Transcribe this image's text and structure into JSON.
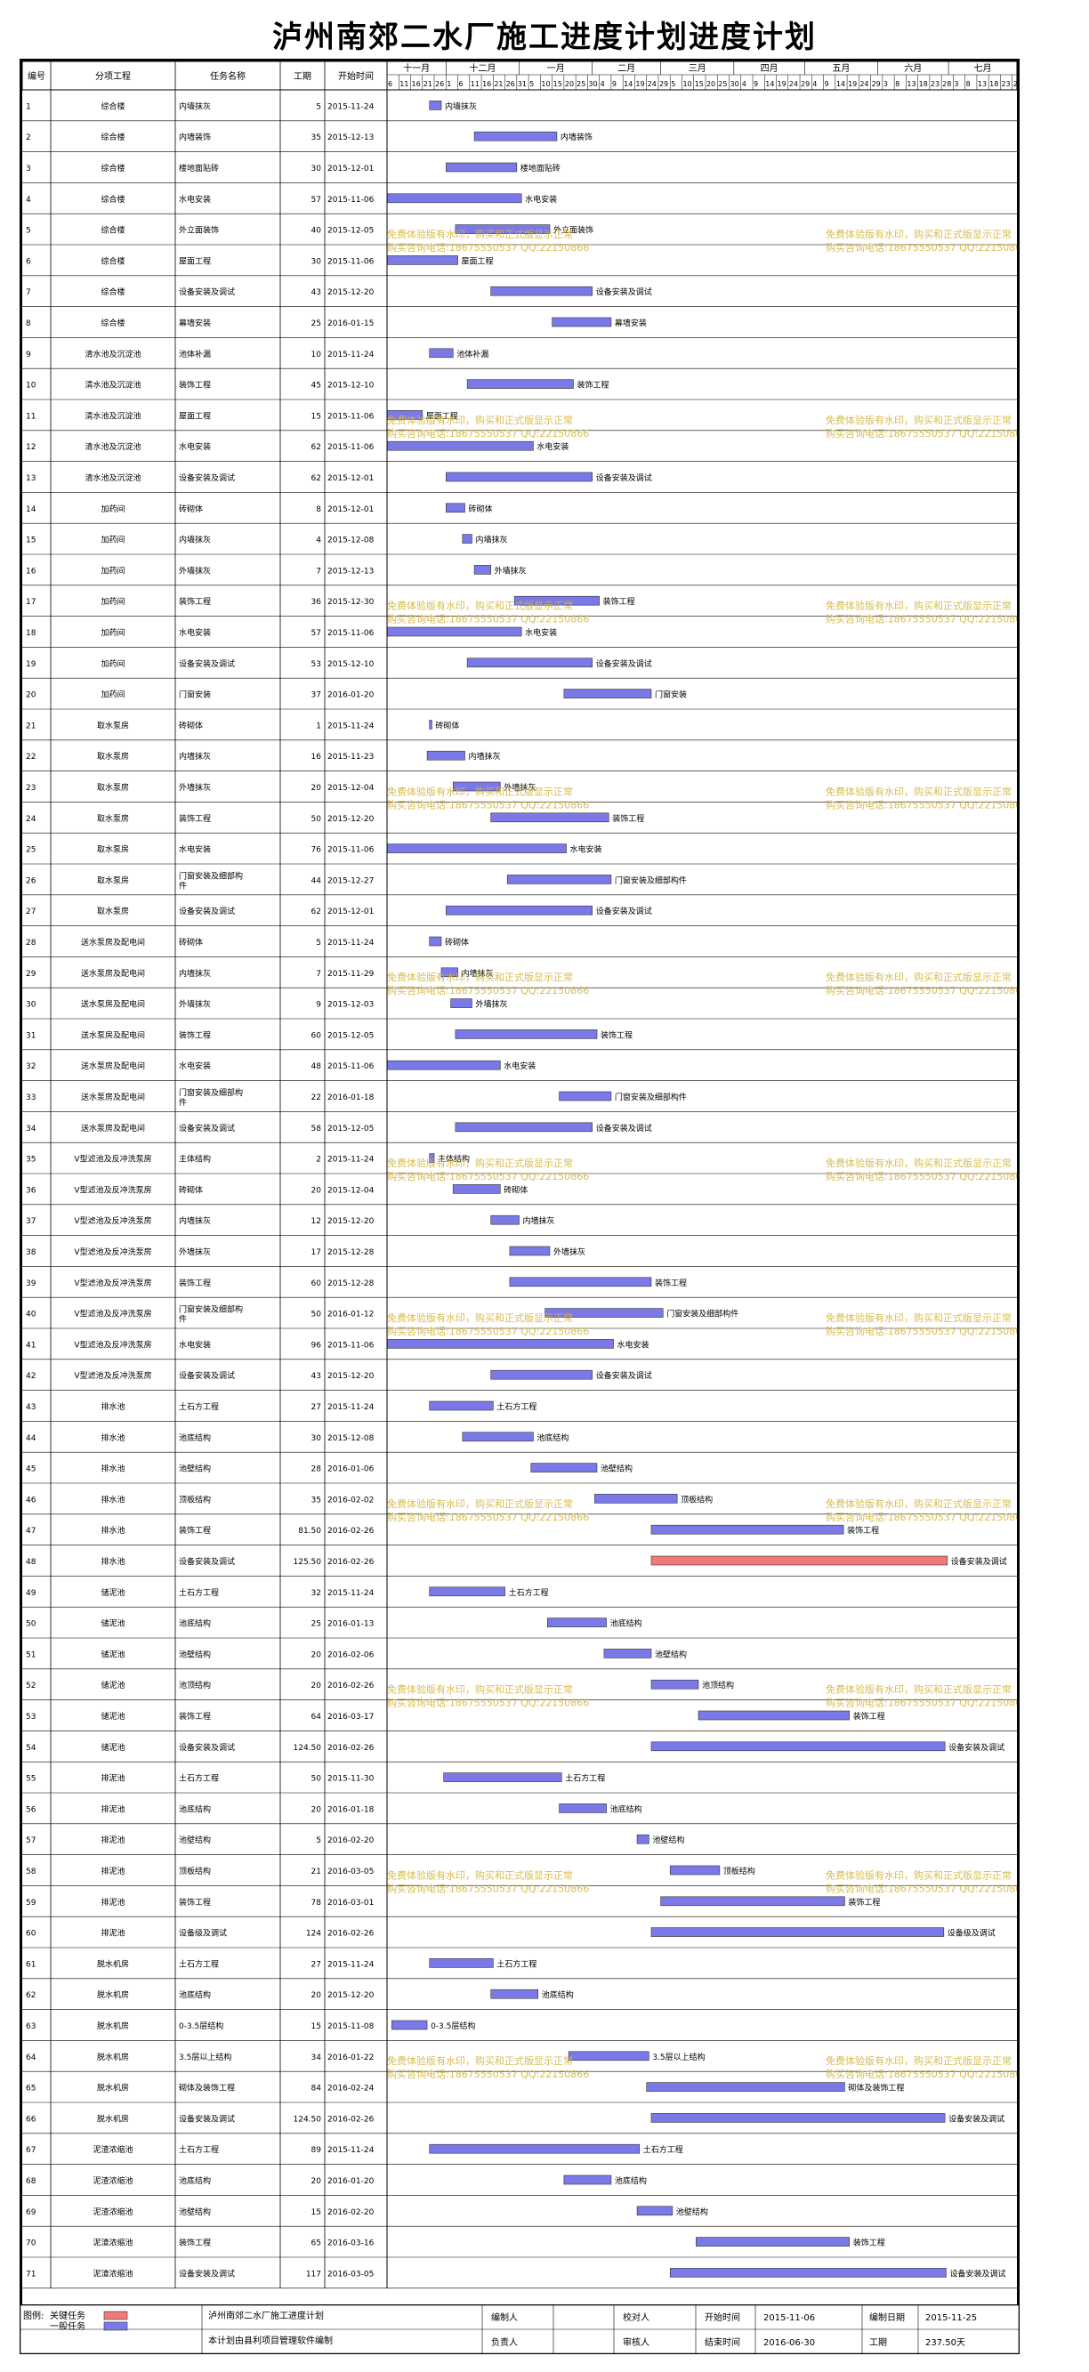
{
  "title": "泸州南郊二水厂施工进度计划进度计划",
  "columns": [
    "编号",
    "分项工程",
    "任务名称",
    "工期",
    "开始时间"
  ],
  "months": [
    "十一月",
    "十二月",
    "一月",
    "二月",
    "三月",
    "四月",
    "五月",
    "六月",
    "七月"
  ],
  "day_ticks": [
    "6",
    "11",
    "16",
    "21",
    "26",
    "1",
    "6",
    "11",
    "16",
    "21",
    "26",
    "31",
    "5",
    "10",
    "15",
    "20",
    "25",
    "30",
    "4",
    "9",
    "14",
    "19",
    "24",
    "29",
    "5",
    "10",
    "15",
    "20",
    "25",
    "30",
    "4",
    "9",
    "14",
    "19",
    "24",
    "29",
    "4",
    "9",
    "14",
    "19",
    "24",
    "29",
    "3",
    "8",
    "13",
    "18",
    "23",
    "28",
    "3",
    "8",
    "13",
    "18",
    "23",
    "28"
  ],
  "colors": {
    "normal": "#7b79e8",
    "critical": "#f07a7a",
    "border": "#000000",
    "grid": "#bfbfbf",
    "watermark": "#d4b53c"
  },
  "watermark": {
    "line1": "免费体验版有水印，购买和正式版显示正常",
    "line2": "购买咨询电话:18675550537 QQ:22150866"
  },
  "chart_data": {
    "type": "gantt",
    "x_start": "2015-11-06",
    "x_end": "2016-07-30",
    "tasks": [
      {
        "id": "1",
        "group": "综合楼",
        "name": "内墙抹灰",
        "duration": "5",
        "start": "2015-11-24"
      },
      {
        "id": "2",
        "group": "综合楼",
        "name": "内墙装饰",
        "duration": "35",
        "start": "2015-12-13"
      },
      {
        "id": "3",
        "group": "综合楼",
        "name": "楼地面贴砖",
        "duration": "30",
        "start": "2015-12-01"
      },
      {
        "id": "4",
        "group": "综合楼",
        "name": "水电安装",
        "duration": "57",
        "start": "2015-11-06"
      },
      {
        "id": "5",
        "group": "综合楼",
        "name": "外立面装饰",
        "duration": "40",
        "start": "2015-12-05"
      },
      {
        "id": "6",
        "group": "综合楼",
        "name": "屋面工程",
        "duration": "30",
        "start": "2015-11-06"
      },
      {
        "id": "7",
        "group": "综合楼",
        "name": "设备安装及调试",
        "duration": "43",
        "start": "2015-12-20"
      },
      {
        "id": "8",
        "group": "综合楼",
        "name": "幕墙安装",
        "duration": "25",
        "start": "2016-01-15"
      },
      {
        "id": "9",
        "group": "清水池及沉淀池",
        "name": "池体补漏",
        "duration": "10",
        "start": "2015-11-24"
      },
      {
        "id": "10",
        "group": "清水池及沉淀池",
        "name": "装饰工程",
        "duration": "45",
        "start": "2015-12-10"
      },
      {
        "id": "11",
        "group": "清水池及沉淀池",
        "name": "屋面工程",
        "duration": "15",
        "start": "2015-11-06"
      },
      {
        "id": "12",
        "group": "清水池及沉淀池",
        "name": "水电安装",
        "duration": "62",
        "start": "2015-11-06"
      },
      {
        "id": "13",
        "group": "清水池及沉淀池",
        "name": "设备安装及调试",
        "duration": "62",
        "start": "2015-12-01"
      },
      {
        "id": "14",
        "group": "加药间",
        "name": "砖砌体",
        "duration": "8",
        "start": "2015-12-01"
      },
      {
        "id": "15",
        "group": "加药间",
        "name": "内墙抹灰",
        "duration": "4",
        "start": "2015-12-08"
      },
      {
        "id": "16",
        "group": "加药间",
        "name": "外墙抹灰",
        "duration": "7",
        "start": "2015-12-13"
      },
      {
        "id": "17",
        "group": "加药间",
        "name": "装饰工程",
        "duration": "36",
        "start": "2015-12-30"
      },
      {
        "id": "18",
        "group": "加药间",
        "name": "水电安装",
        "duration": "57",
        "start": "2015-11-06"
      },
      {
        "id": "19",
        "group": "加药间",
        "name": "设备安装及调试",
        "duration": "53",
        "start": "2015-12-10"
      },
      {
        "id": "20",
        "group": "加药间",
        "name": "门窗安装",
        "duration": "37",
        "start": "2016-01-20"
      },
      {
        "id": "21",
        "group": "取水泵房",
        "name": "砖砌体",
        "duration": "1",
        "start": "2015-11-24"
      },
      {
        "id": "22",
        "group": "取水泵房",
        "name": "内墙抹灰",
        "duration": "16",
        "start": "2015-11-23"
      },
      {
        "id": "23",
        "group": "取水泵房",
        "name": "外墙抹灰",
        "duration": "20",
        "start": "2015-12-04"
      },
      {
        "id": "24",
        "group": "取水泵房",
        "name": "装饰工程",
        "duration": "50",
        "start": "2015-12-20"
      },
      {
        "id": "25",
        "group": "取水泵房",
        "name": "水电安装",
        "duration": "76",
        "start": "2015-11-06"
      },
      {
        "id": "26",
        "group": "取水泵房",
        "name": "门窗安装及细部构件",
        "duration": "44",
        "start": "2015-12-27"
      },
      {
        "id": "27",
        "group": "取水泵房",
        "name": "设备安装及调试",
        "duration": "62",
        "start": "2015-12-01"
      },
      {
        "id": "28",
        "group": "送水泵房及配电间",
        "name": "砖砌体",
        "duration": "5",
        "start": "2015-11-24"
      },
      {
        "id": "29",
        "group": "送水泵房及配电间",
        "name": "内墙抹灰",
        "duration": "7",
        "start": "2015-11-29"
      },
      {
        "id": "30",
        "group": "送水泵房及配电间",
        "name": "外墙抹灰",
        "duration": "9",
        "start": "2015-12-03"
      },
      {
        "id": "31",
        "group": "送水泵房及配电间",
        "name": "装饰工程",
        "duration": "60",
        "start": "2015-12-05"
      },
      {
        "id": "32",
        "group": "送水泵房及配电间",
        "name": "水电安装",
        "duration": "48",
        "start": "2015-11-06"
      },
      {
        "id": "33",
        "group": "送水泵房及配电间",
        "name": "门窗安装及细部构件",
        "duration": "22",
        "start": "2016-01-18"
      },
      {
        "id": "34",
        "group": "送水泵房及配电间",
        "name": "设备安装及调试",
        "duration": "58",
        "start": "2015-12-05"
      },
      {
        "id": "35",
        "group": "V型滤池及反冲洗泵房",
        "name": "主体结构",
        "duration": "2",
        "start": "2015-11-24"
      },
      {
        "id": "36",
        "group": "V型滤池及反冲洗泵房",
        "name": "砖砌体",
        "duration": "20",
        "start": "2015-12-04"
      },
      {
        "id": "37",
        "group": "V型滤池及反冲洗泵房",
        "name": "内墙抹灰",
        "duration": "12",
        "start": "2015-12-20"
      },
      {
        "id": "38",
        "group": "V型滤池及反冲洗泵房",
        "name": "外墙抹灰",
        "duration": "17",
        "start": "2015-12-28"
      },
      {
        "id": "39",
        "group": "V型滤池及反冲洗泵房",
        "name": "装饰工程",
        "duration": "60",
        "start": "2015-12-28"
      },
      {
        "id": "40",
        "group": "V型滤池及反冲洗泵房",
        "name": "门窗安装及细部构件",
        "duration": "50",
        "start": "2016-01-12"
      },
      {
        "id": "41",
        "group": "V型滤池及反冲洗泵房",
        "name": "水电安装",
        "duration": "96",
        "start": "2015-11-06"
      },
      {
        "id": "42",
        "group": "V型滤池及反冲洗泵房",
        "name": "设备安装及调试",
        "duration": "43",
        "start": "2015-12-20"
      },
      {
        "id": "43",
        "group": "排水池",
        "name": "土石方工程",
        "duration": "27",
        "start": "2015-11-24"
      },
      {
        "id": "44",
        "group": "排水池",
        "name": "池底结构",
        "duration": "30",
        "start": "2015-12-08"
      },
      {
        "id": "45",
        "group": "排水池",
        "name": "池壁结构",
        "duration": "28",
        "start": "2016-01-06"
      },
      {
        "id": "46",
        "group": "排水池",
        "name": "顶板结构",
        "duration": "35",
        "start": "2016-02-02"
      },
      {
        "id": "47",
        "group": "排水池",
        "name": "装饰工程",
        "duration": "81.50",
        "start": "2016-02-26"
      },
      {
        "id": "48",
        "group": "排水池",
        "name": "设备安装及调试",
        "duration": "125.50",
        "start": "2016-02-26",
        "critical": true
      },
      {
        "id": "49",
        "group": "储泥池",
        "name": "土石方工程",
        "duration": "32",
        "start": "2015-11-24"
      },
      {
        "id": "50",
        "group": "储泥池",
        "name": "池底结构",
        "duration": "25",
        "start": "2016-01-13"
      },
      {
        "id": "51",
        "group": "储泥池",
        "name": "池壁结构",
        "duration": "20",
        "start": "2016-02-06"
      },
      {
        "id": "52",
        "group": "储泥池",
        "name": "池顶结构",
        "duration": "20",
        "start": "2016-02-26"
      },
      {
        "id": "53",
        "group": "储泥池",
        "name": "装饰工程",
        "duration": "64",
        "start": "2016-03-17"
      },
      {
        "id": "54",
        "group": "储泥池",
        "name": "设备安装及调试",
        "duration": "124.50",
        "start": "2016-02-26"
      },
      {
        "id": "55",
        "group": "排泥池",
        "name": "土石方工程",
        "duration": "50",
        "start": "2015-11-30"
      },
      {
        "id": "56",
        "group": "排泥池",
        "name": "池底结构",
        "duration": "20",
        "start": "2016-01-18"
      },
      {
        "id": "57",
        "group": "排泥池",
        "name": "池壁结构",
        "duration": "5",
        "start": "2016-02-20"
      },
      {
        "id": "58",
        "group": "排泥池",
        "name": "顶板结构",
        "duration": "21",
        "start": "2016-03-05"
      },
      {
        "id": "59",
        "group": "排泥池",
        "name": "装饰工程",
        "duration": "78",
        "start": "2016-03-01"
      },
      {
        "id": "60",
        "group": "排泥池",
        "name": "设备级及调试",
        "duration": "124",
        "start": "2016-02-26"
      },
      {
        "id": "61",
        "group": "脱水机房",
        "name": "土石方工程",
        "duration": "27",
        "start": "2015-11-24"
      },
      {
        "id": "62",
        "group": "脱水机房",
        "name": "池底结构",
        "duration": "20",
        "start": "2015-12-20"
      },
      {
        "id": "63",
        "group": "脱水机房",
        "name": "0-3.5层结构",
        "duration": "15",
        "start": "2015-11-08"
      },
      {
        "id": "64",
        "group": "脱水机房",
        "name": "3.5层以上结构",
        "duration": "34",
        "start": "2016-01-22"
      },
      {
        "id": "65",
        "group": "脱水机房",
        "name": "砌体及装饰工程",
        "duration": "84",
        "start": "2016-02-24"
      },
      {
        "id": "66",
        "group": "脱水机房",
        "name": "设备安装及调试",
        "duration": "124.50",
        "start": "2016-02-26"
      },
      {
        "id": "67",
        "group": "泥渣浓缩池",
        "name": "土石方工程",
        "duration": "89",
        "start": "2015-11-24"
      },
      {
        "id": "68",
        "group": "泥渣浓缩池",
        "name": "池底结构",
        "duration": "20",
        "start": "2016-01-20"
      },
      {
        "id": "69",
        "group": "泥渣浓缩池",
        "name": "池壁结构",
        "duration": "15",
        "start": "2016-02-20"
      },
      {
        "id": "70",
        "group": "泥渣浓缩池",
        "name": "装饰工程",
        "duration": "65",
        "start": "2016-03-16"
      },
      {
        "id": "71",
        "group": "泥渣浓缩池",
        "name": "设备安装及调试",
        "duration": "117",
        "start": "2016-03-05"
      }
    ]
  },
  "footer": {
    "legend_title": "图例:",
    "legend_critical": "关键任务",
    "legend_normal": "一般任务",
    "desc_text": "泸州南郊二水厂施工进度计划",
    "software_text": "本计划由县利项目管理软件编制",
    "labels": {
      "editor": "编制人",
      "checker": "校对人",
      "start": "开始时间",
      "compiled": "编制日期",
      "responsible": "负责人",
      "reviewer": "审核人",
      "end": "结束时间",
      "duration": "工期"
    },
    "values": {
      "start": "2015-11-06",
      "compiled": "2015-11-25",
      "end": "2016-06-30",
      "duration": "237.50天"
    }
  }
}
